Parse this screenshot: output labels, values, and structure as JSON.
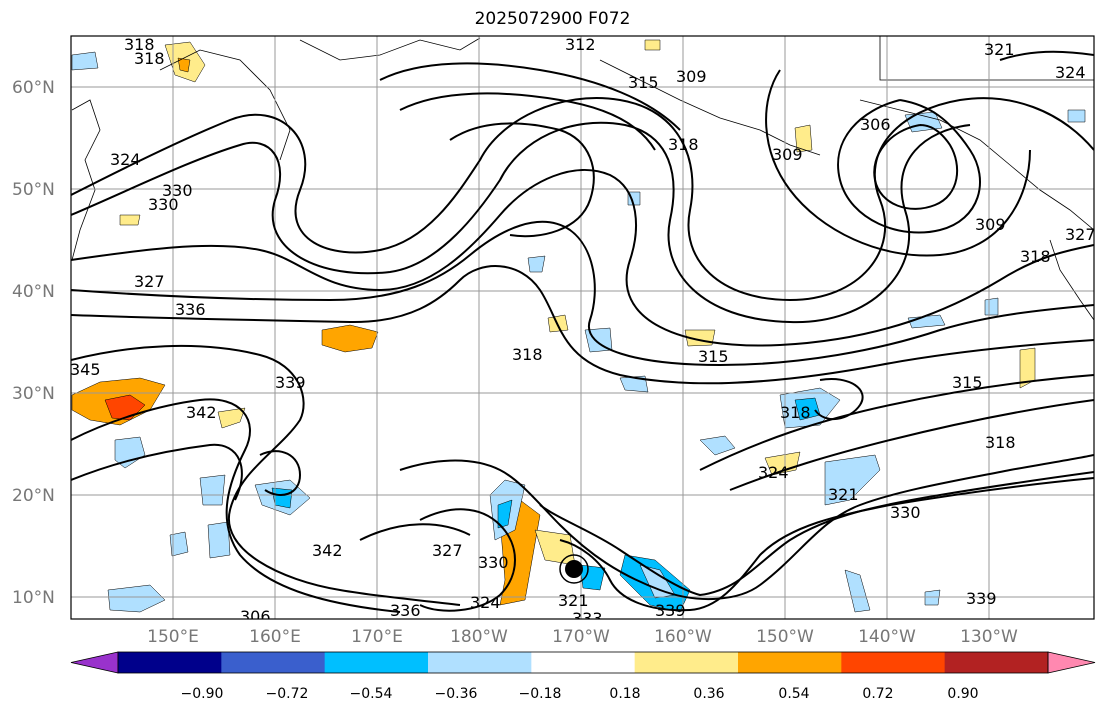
{
  "title": "2025072900 F072",
  "map": {
    "lat_labels": [
      "60°N",
      "50°N",
      "40°N",
      "30°N",
      "20°N",
      "10°N"
    ],
    "lon_labels": [
      "150°E",
      "160°E",
      "170°E",
      "180°W",
      "170°W",
      "160°W",
      "150°W",
      "140°W",
      "130°W"
    ],
    "contour_labels": [
      "318",
      "318",
      "312",
      "309",
      "315",
      "309",
      "318",
      "306",
      "321",
      "324",
      "324",
      "330",
      "330",
      "327",
      "336",
      "345",
      "339",
      "342",
      "318",
      "315",
      "318",
      "315",
      "309",
      "318",
      "327",
      "318",
      "324",
      "321",
      "330",
      "327",
      "330",
      "324",
      "321",
      "339",
      "336",
      "339",
      "342",
      "333",
      "306"
    ]
  },
  "colorbar": {
    "ticks": [
      "−0.90",
      "−0.72",
      "−0.54",
      "−0.36",
      "−0.18",
      "0.18",
      "0.36",
      "0.54",
      "0.72",
      "0.90"
    ],
    "colors": [
      "#9932cc",
      "#00008b",
      "#3a5fcd",
      "#00bfff",
      "#b0e0ff",
      "#ffffff",
      "#ffec8b",
      "#ffa500",
      "#ff4500",
      "#b22222",
      "#ff88b0"
    ]
  },
  "colors": {
    "grid": "#999999",
    "contour": "#000000",
    "storm_marker": "#000000"
  }
}
